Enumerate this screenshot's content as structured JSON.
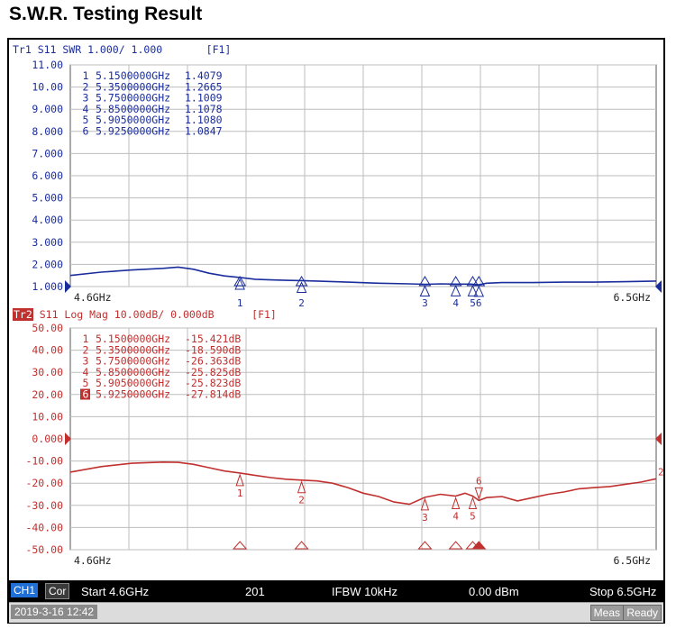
{
  "page_title": "S.W.R. Testing Result",
  "trace1": {
    "header": "Tr1 S11 SWR 1.000/ 1.000",
    "header_tag": "[F1]",
    "color": "#1a2d9c"
  },
  "trace2": {
    "header_id": "Tr2",
    "header": "S11 Log Mag 10.00dB/ 0.000dB",
    "header_tag": "[F1]",
    "color": "#c0302e"
  },
  "status_bar": {
    "channel": "CH1",
    "correction": "Cor",
    "start": "Start 4.6GHz",
    "points": "201",
    "ifbw": "IFBW 10kHz",
    "power": "0.00 dBm",
    "stop": "Stop 6.5GHz"
  },
  "info_bar": {
    "timestamp": "2019-3-16 12:42",
    "meas": "Meas",
    "ready": "Ready"
  },
  "chart_data": [
    {
      "type": "line",
      "title": "Tr1 S11 SWR 1.000/ 1.000",
      "x_start_label": "4.6GHz",
      "x_stop_label": "6.5GHz",
      "xlim": [
        4.6,
        6.5
      ],
      "ylim": [
        1.0,
        11.0
      ],
      "y_ticks": [
        "11.00",
        "10.00",
        "9.000",
        "8.000",
        "7.000",
        "6.000",
        "5.000",
        "4.000",
        "3.000",
        "2.000",
        "1.000"
      ],
      "grid": true,
      "series": [
        {
          "x": [
            4.6,
            4.7,
            4.8,
            4.9,
            4.95,
            5.0,
            5.05,
            5.1,
            5.15,
            5.2,
            5.25,
            5.3,
            5.35,
            5.4,
            5.5,
            5.6,
            5.7,
            5.75,
            5.8,
            5.85,
            5.9,
            5.925,
            5.95,
            6.0,
            6.1,
            6.2,
            6.3,
            6.4,
            6.5
          ],
          "y": [
            1.5,
            1.65,
            1.75,
            1.82,
            1.88,
            1.78,
            1.6,
            1.48,
            1.41,
            1.33,
            1.3,
            1.28,
            1.27,
            1.25,
            1.2,
            1.15,
            1.12,
            1.1,
            1.12,
            1.11,
            1.11,
            1.08,
            1.15,
            1.18,
            1.18,
            1.2,
            1.2,
            1.22,
            1.25
          ]
        }
      ],
      "markers": [
        {
          "id": "1",
          "freq": "5.1500000GHz",
          "value": "1.4079",
          "x": 5.15,
          "y": 1.4079
        },
        {
          "id": "2",
          "freq": "5.3500000GHz",
          "value": "1.2665",
          "x": 5.35,
          "y": 1.2665
        },
        {
          "id": "3",
          "freq": "5.7500000GHz",
          "value": "1.1009",
          "x": 5.75,
          "y": 1.1009
        },
        {
          "id": "4",
          "freq": "5.8500000GHz",
          "value": "1.1078",
          "x": 5.85,
          "y": 1.1078
        },
        {
          "id": "5",
          "freq": "5.9050000GHz",
          "value": "1.1080",
          "x": 5.905,
          "y": 1.108
        },
        {
          "id": "6",
          "freq": "5.9250000GHz",
          "value": "1.0847",
          "x": 5.925,
          "y": 1.0847
        }
      ],
      "marker_axis_labels": [
        "1",
        "2",
        "3",
        "4",
        "56"
      ]
    },
    {
      "type": "line",
      "title": "S11 Log Mag 10.00dB/ 0.000dB",
      "x_start_label": "4.6GHz",
      "x_stop_label": "6.5GHz",
      "xlim": [
        4.6,
        6.5
      ],
      "ylim": [
        -50,
        50
      ],
      "y_ticks": [
        "50.00",
        "40.00",
        "30.00",
        "20.00",
        "10.00",
        "0.000",
        "-10.00",
        "-20.00",
        "-30.00",
        "-40.00",
        "-50.00"
      ],
      "grid": true,
      "series": [
        {
          "x": [
            4.6,
            4.7,
            4.8,
            4.9,
            4.95,
            5.0,
            5.05,
            5.1,
            5.15,
            5.2,
            5.25,
            5.3,
            5.35,
            5.4,
            5.45,
            5.5,
            5.55,
            5.6,
            5.65,
            5.7,
            5.75,
            5.8,
            5.85,
            5.88,
            5.905,
            5.925,
            5.95,
            6.0,
            6.05,
            6.1,
            6.15,
            6.2,
            6.25,
            6.3,
            6.35,
            6.4,
            6.45,
            6.5
          ],
          "y": [
            -15.0,
            -12.5,
            -11.0,
            -10.5,
            -10.6,
            -11.5,
            -13.0,
            -14.5,
            -15.4,
            -16.5,
            -17.5,
            -18.2,
            -18.6,
            -19.0,
            -20.0,
            -22.0,
            -24.5,
            -26.0,
            -28.5,
            -29.5,
            -26.4,
            -25.0,
            -25.8,
            -24.5,
            -25.8,
            -27.8,
            -26.5,
            -26.0,
            -28.0,
            -26.5,
            -25.0,
            -24.0,
            -22.5,
            -22.0,
            -21.5,
            -20.5,
            -19.5,
            -18.0
          ]
        }
      ],
      "markers": [
        {
          "id": "1",
          "freq": "5.1500000GHz",
          "value": "-15.421dB",
          "x": 5.15,
          "y": -15.421
        },
        {
          "id": "2",
          "freq": "5.3500000GHz",
          "value": "-18.590dB",
          "x": 5.35,
          "y": -18.59
        },
        {
          "id": "3",
          "freq": "5.7500000GHz",
          "value": "-26.363dB",
          "x": 5.75,
          "y": -26.363
        },
        {
          "id": "4",
          "freq": "5.8500000GHz",
          "value": "-25.825dB",
          "x": 5.85,
          "y": -25.825
        },
        {
          "id": "5",
          "freq": "5.9050000GHz",
          "value": "-25.823dB",
          "x": 5.905,
          "y": -25.823
        },
        {
          "id": "6",
          "freq": "5.9250000GHz",
          "value": "-27.814dB",
          "x": 5.925,
          "y": -27.814
        }
      ],
      "active_marker": "6",
      "right_edge_label": "2"
    }
  ]
}
